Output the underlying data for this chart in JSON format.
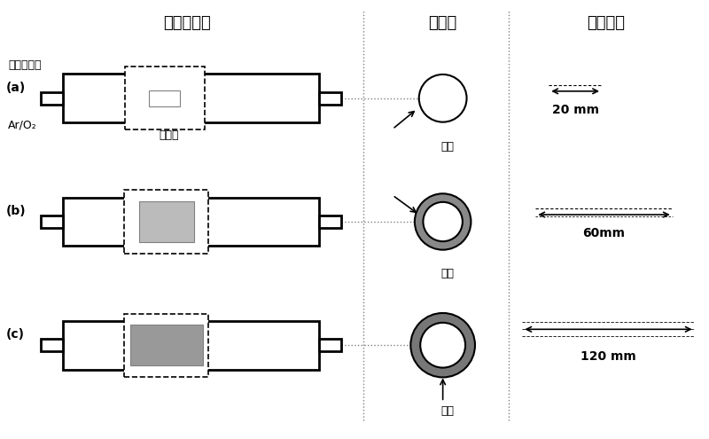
{
  "title_schematic": "设备示意图",
  "title_cross": "剖面图",
  "title_length": "样品长度",
  "label_a": "(a)",
  "label_b": "(b)",
  "label_c": "(c)",
  "label_vacuum": "真空管式炉",
  "label_gas": "Ar/O₂",
  "label_heat": "加热区",
  "label_sample": "样品",
  "label_20mm": "20 mm",
  "label_60mm": "60mm",
  "label_120mm": "120 mm",
  "bg_color": "#ffffff",
  "line_color": "#000000",
  "dashed_color": "#555555",
  "sample_fill_a": "#ffffff",
  "sample_fill_b": "#aaaaaa",
  "sample_fill_c": "#888888"
}
